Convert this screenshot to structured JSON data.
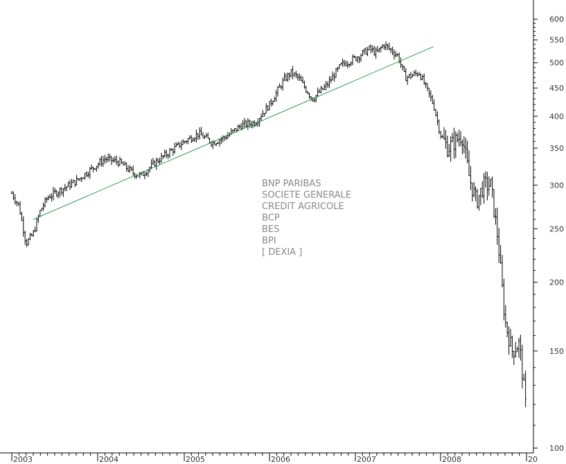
{
  "chart_data": {
    "type": "ohlc",
    "title": "",
    "xlabel": "",
    "ylabel": "",
    "y_scale": "log",
    "ylim": [
      98,
      650
    ],
    "grid": false,
    "colors": {
      "bars": "#000000",
      "trendline": "#2e9b4e",
      "legend_text": "#888888",
      "axis": "#000000"
    },
    "y_ticks": [
      100,
      150,
      200,
      250,
      300,
      350,
      400,
      450,
      500,
      550,
      600
    ],
    "x_ticks": [
      "2003",
      "2004",
      "2005",
      "2006",
      "2007",
      "2008",
      "20"
    ],
    "legend": [
      "BNP PARIBAS",
      "SOCIETE GENERALE",
      "CREDIT AGRICOLE",
      "BCP",
      "BES",
      "BPI",
      "[ DEXIA ]"
    ],
    "trendline": {
      "start": [
        "2003-04",
        260
      ],
      "end": [
        "2007-12",
        535
      ]
    },
    "series_anchors": [
      [
        "2003-01",
        290
      ],
      [
        "2003-02",
        275
      ],
      [
        "2003-03",
        235
      ],
      [
        "2003-04",
        245
      ],
      [
        "2003-05",
        270
      ],
      [
        "2003-06",
        285
      ],
      [
        "2003-08",
        295
      ],
      [
        "2003-10",
        305
      ],
      [
        "2003-12",
        320
      ],
      [
        "2004-02",
        335
      ],
      [
        "2004-04",
        330
      ],
      [
        "2004-06",
        315
      ],
      [
        "2004-07",
        312
      ],
      [
        "2004-09",
        330
      ],
      [
        "2004-11",
        345
      ],
      [
        "2005-01",
        360
      ],
      [
        "2005-03",
        372
      ],
      [
        "2005-05",
        358
      ],
      [
        "2005-07",
        368
      ],
      [
        "2005-09",
        385
      ],
      [
        "2005-11",
        390
      ],
      [
        "2006-01",
        420
      ],
      [
        "2006-03",
        465
      ],
      [
        "2006-04",
        480
      ],
      [
        "2006-05",
        470
      ],
      [
        "2006-07",
        430
      ],
      [
        "2006-09",
        455
      ],
      [
        "2006-11",
        495
      ],
      [
        "2007-01",
        510
      ],
      [
        "2007-03",
        530
      ],
      [
        "2007-04",
        520
      ],
      [
        "2007-05",
        540
      ],
      [
        "2007-07",
        515
      ],
      [
        "2007-08",
        470
      ],
      [
        "2007-10",
        480
      ],
      [
        "2007-12",
        420
      ],
      [
        "2008-01",
        370
      ],
      [
        "2008-02",
        350
      ],
      [
        "2008-04",
        370
      ],
      [
        "2008-05",
        310
      ],
      [
        "2008-06",
        280
      ],
      [
        "2008-07",
        300
      ],
      [
        "2008-08",
        300
      ],
      [
        "2008-09",
        240
      ],
      [
        "2008-10",
        170
      ],
      [
        "2008-11",
        150
      ],
      [
        "2008-12",
        155
      ],
      [
        "2009-01",
        115
      ]
    ]
  }
}
